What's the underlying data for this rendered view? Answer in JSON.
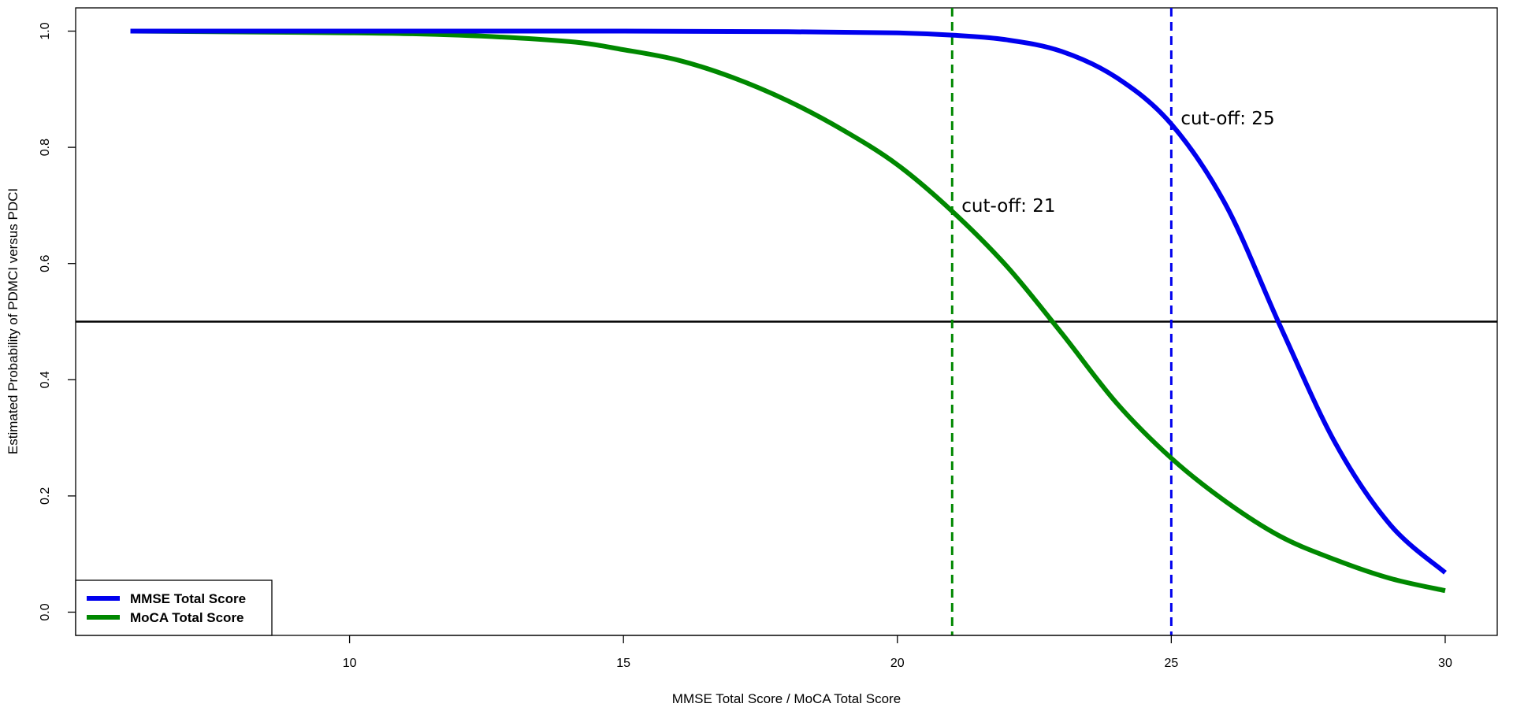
{
  "chart_data": {
    "type": "line",
    "title": "",
    "xlabel": "MMSE Total Score / MoCA Total Score",
    "ylabel": "Estimated Probability of PDMCI versus PDCI",
    "xlim": [
      5,
      30.95
    ],
    "ylim": [
      -0.04,
      1.04
    ],
    "x_ticks": [
      10,
      15,
      20,
      25,
      30
    ],
    "y_ticks": [
      0.0,
      0.2,
      0.4,
      0.6,
      0.8,
      1.0
    ],
    "x_tick_labels": [
      "10",
      "15",
      "20",
      "25",
      "30"
    ],
    "y_tick_labels": [
      "0.0",
      "0.2",
      "0.4",
      "0.6",
      "0.8",
      "1.0"
    ],
    "grid": false,
    "legend_position": "bottom-left",
    "series": [
      {
        "name": "MMSE Total Score",
        "color": "#0000ee",
        "x": [
          6,
          10,
          15,
          18,
          20,
          21,
          22,
          23,
          24,
          25,
          26,
          27,
          28,
          29,
          30
        ],
        "y": [
          1.0,
          1.0,
          1.0,
          0.999,
          0.997,
          0.993,
          0.985,
          0.965,
          0.92,
          0.84,
          0.7,
          0.49,
          0.29,
          0.15,
          0.068
        ]
      },
      {
        "name": "MoCA Total Score",
        "color": "#008800",
        "x": [
          6,
          10,
          12,
          14,
          15,
          16,
          17,
          18,
          19,
          20,
          21,
          22,
          23,
          24,
          25,
          26,
          27,
          28,
          29,
          30
        ],
        "y": [
          1.0,
          0.997,
          0.993,
          0.982,
          0.968,
          0.95,
          0.92,
          0.88,
          0.83,
          0.77,
          0.69,
          0.595,
          0.48,
          0.36,
          0.265,
          0.19,
          0.13,
          0.09,
          0.058,
          0.037
        ]
      }
    ],
    "reference_lines": [
      {
        "orientation": "horizontal",
        "value": 0.5,
        "color": "#000000",
        "style": "solid"
      },
      {
        "orientation": "vertical",
        "value": 21,
        "color": "#008800",
        "style": "dashed"
      },
      {
        "orientation": "vertical",
        "value": 25,
        "color": "#0000ee",
        "style": "dashed"
      }
    ],
    "annotations": [
      {
        "text": "cut-off: 21",
        "x": 21,
        "y": 0.7
      },
      {
        "text": "cut-off: 25",
        "x": 25,
        "y": 0.85
      }
    ]
  }
}
